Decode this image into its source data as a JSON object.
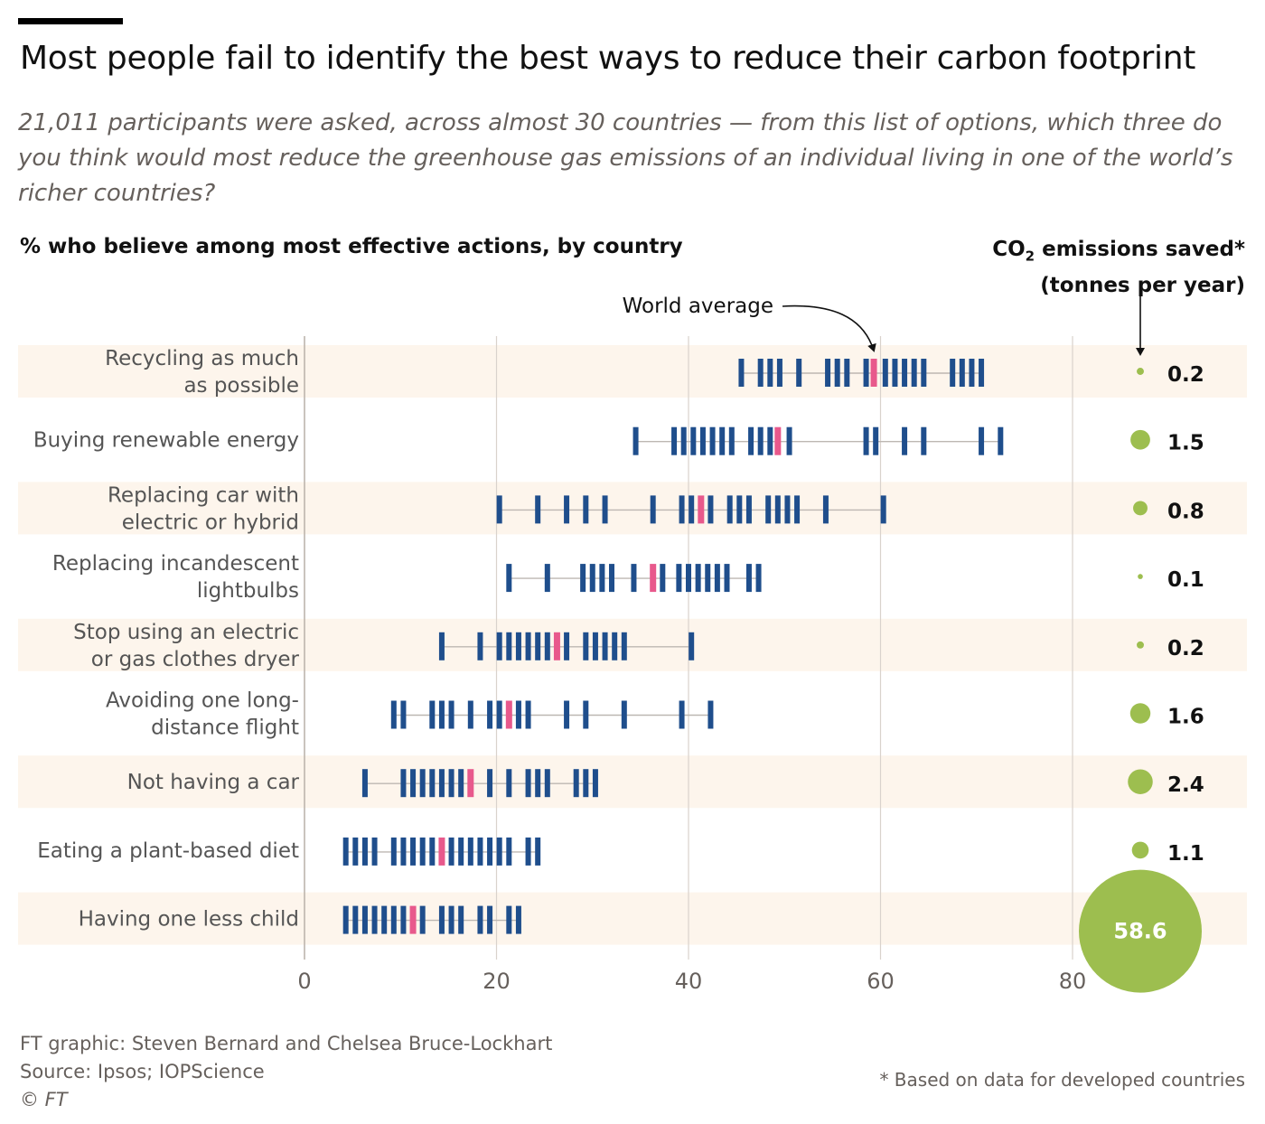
{
  "header": {
    "title": "Most people fail to identify the best ways to reduce their carbon footprint",
    "subtitle": "21,011 participants were asked, across almost 30 countries  — from this list of options, which three do you think would most reduce the greenhouse gas emissions of an individual living in one of the world’s richer countries?",
    "left_heading": "% who believe among most effective actions, by country",
    "right_heading_line1_pre": "CO",
    "right_heading_line1_sub": "2",
    "right_heading_line1_post": " emissions saved*",
    "right_heading_line2": "(tonnes per year)"
  },
  "footer": {
    "credit_line1": "FT graphic: Steven Bernard and Chelsea Bruce-Lockhart",
    "credit_line2": "Source: Ipsos; IOPScience",
    "credit_line3": "© FT",
    "footnote": "* Based on data for developed countries"
  },
  "colors": {
    "country_tick": "#1f4e8c",
    "world_average_tick": "#e8598c",
    "bubble": "#9dbe4f",
    "row_band": "#fdf5ec",
    "gridline": "#d9d2cc",
    "range_line": "#bdb7b2"
  },
  "chart_data": {
    "type": "strip",
    "xlim": [
      0,
      80
    ],
    "xticks": [
      "0",
      "20",
      "40",
      "60",
      "80"
    ],
    "annotation": "World average",
    "rows": [
      {
        "label_lines": [
          "Recycling as much",
          "as possible"
        ],
        "world_average": 59.3,
        "emissions_saved": "0.2",
        "emissions_value": 0.2,
        "countries": [
          45.5,
          47.5,
          48.5,
          49.5,
          51.5,
          54.5,
          55.5,
          56.5,
          58.5,
          60.5,
          61.5,
          62.5,
          63.5,
          64.5,
          67.5,
          68.5,
          69.5,
          70.5
        ]
      },
      {
        "label_lines": [
          "Buying renewable energy"
        ],
        "world_average": 49.3,
        "emissions_saved": "1.5",
        "emissions_value": 1.5,
        "countries": [
          34.5,
          38.5,
          39.5,
          40.5,
          41.5,
          42.5,
          43.5,
          44.5,
          46.5,
          47.5,
          48.5,
          50.5,
          58.5,
          59.5,
          62.5,
          64.5,
          70.5,
          72.5
        ]
      },
      {
        "label_lines": [
          "Replacing car with",
          "electric or hybrid"
        ],
        "world_average": 41.3,
        "emissions_saved": "0.8",
        "emissions_value": 0.8,
        "countries": [
          20.3,
          24.3,
          27.3,
          29.3,
          31.3,
          36.3,
          39.3,
          40.3,
          42.3,
          44.3,
          45.3,
          46.3,
          48.3,
          49.3,
          50.3,
          51.3,
          54.3,
          60.3
        ]
      },
      {
        "label_lines": [
          "Replacing incandescent",
          "lightbulbs"
        ],
        "world_average": 36.3,
        "emissions_saved": "0.1",
        "emissions_value": 0.1,
        "countries": [
          21.3,
          25.3,
          29.0,
          30.0,
          31.0,
          32.0,
          34.3,
          37.3,
          39.0,
          40.0,
          41.0,
          42.0,
          43.0,
          44.0,
          46.3,
          47.3
        ]
      },
      {
        "label_lines": [
          "Stop using an electric",
          "or gas clothes dryer"
        ],
        "world_average": 26.3,
        "emissions_saved": "0.2",
        "emissions_value": 0.2,
        "countries": [
          14.3,
          18.3,
          20.3,
          21.3,
          22.3,
          23.3,
          24.3,
          25.3,
          27.3,
          29.3,
          30.3,
          31.3,
          32.3,
          33.3,
          40.3
        ]
      },
      {
        "label_lines": [
          "Avoiding one long-",
          "distance flight"
        ],
        "world_average": 21.3,
        "emissions_saved": "1.6",
        "emissions_value": 1.6,
        "countries": [
          9.3,
          10.3,
          13.3,
          14.3,
          15.3,
          17.3,
          19.3,
          20.3,
          22.3,
          23.3,
          27.3,
          29.3,
          33.3,
          39.3,
          42.3
        ]
      },
      {
        "label_lines": [
          "Not having a car"
        ],
        "world_average": 17.3,
        "emissions_saved": "2.4",
        "emissions_value": 2.4,
        "countries": [
          6.3,
          10.3,
          11.3,
          12.3,
          13.3,
          14.3,
          15.3,
          16.3,
          19.3,
          21.3,
          23.3,
          24.3,
          25.3,
          28.3,
          29.3,
          30.3
        ]
      },
      {
        "label_lines": [
          "Eating a plant-based diet"
        ],
        "world_average": 14.3,
        "emissions_saved": "1.1",
        "emissions_value": 1.1,
        "countries": [
          4.3,
          5.3,
          6.3,
          7.3,
          9.3,
          10.3,
          11.3,
          12.3,
          13.3,
          15.3,
          16.3,
          17.3,
          18.3,
          19.3,
          20.3,
          21.3,
          23.3,
          24.3
        ]
      },
      {
        "label_lines": [
          "Having one less child"
        ],
        "world_average": 11.3,
        "emissions_saved": "58.6",
        "emissions_value": 58.6,
        "countries": [
          4.3,
          5.3,
          6.3,
          7.3,
          8.3,
          9.3,
          10.3,
          12.3,
          14.3,
          15.3,
          16.3,
          18.3,
          19.3,
          21.3,
          22.3
        ]
      }
    ]
  }
}
